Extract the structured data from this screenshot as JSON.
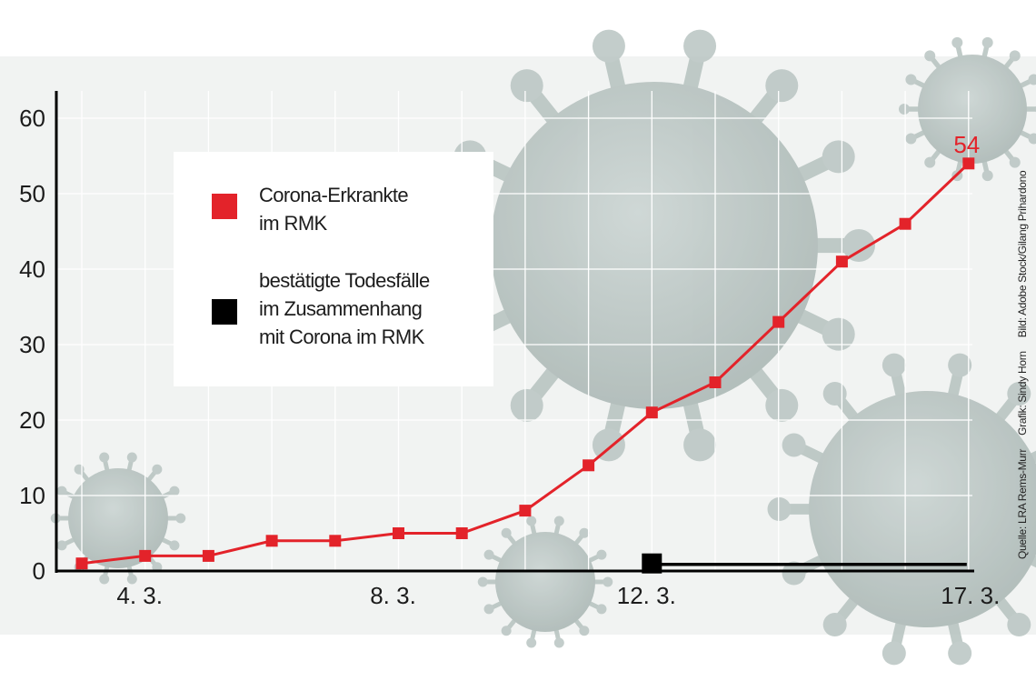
{
  "chart_data": {
    "type": "line",
    "title": "",
    "xlabel": "",
    "ylabel": "",
    "categories": [
      "3.3.",
      "4.3.",
      "5.3.",
      "6.3.",
      "7.3.",
      "8.3.",
      "9.3.",
      "10.3.",
      "11.3.",
      "12.3.",
      "13.3.",
      "14.3.",
      "15.3.",
      "16.3.",
      "17.3."
    ],
    "x_tick_labels": [
      {
        "category": "4.3.",
        "label": "4. 3."
      },
      {
        "category": "8.3.",
        "label": "8. 3."
      },
      {
        "category": "12.3.",
        "label": "12. 3."
      },
      {
        "category": "17.3.",
        "label": "17. 3."
      }
    ],
    "ylim": [
      0,
      60
    ],
    "y_ticks": [
      0,
      10,
      20,
      30,
      40,
      50,
      60
    ],
    "grid": true,
    "legend_placement": "top-left",
    "series": [
      {
        "name": "Corona-Erkrankte\nim RMK",
        "color": "#e3232a",
        "marker": "square",
        "values": [
          1,
          2,
          2,
          4,
          4,
          5,
          5,
          8,
          14,
          21,
          25,
          33,
          41,
          46,
          54
        ]
      },
      {
        "name": "bestätigte Todesfälle\nim Zusammenhang\nmit Corona  im RMK",
        "color": "#000000",
        "marker": "square",
        "values": [
          null,
          null,
          null,
          null,
          null,
          null,
          null,
          null,
          null,
          1,
          1,
          1,
          1,
          1,
          1
        ]
      }
    ],
    "annotations": [
      {
        "category": "17.3.",
        "text": "54",
        "color": "#e3232a"
      }
    ]
  },
  "credits": {
    "source": "Quelle: LRA Rems-Murr",
    "graphic": "Grafik: Sindy Horn",
    "image": "Bild: Adobe Stock/Gilang Prihardono"
  }
}
